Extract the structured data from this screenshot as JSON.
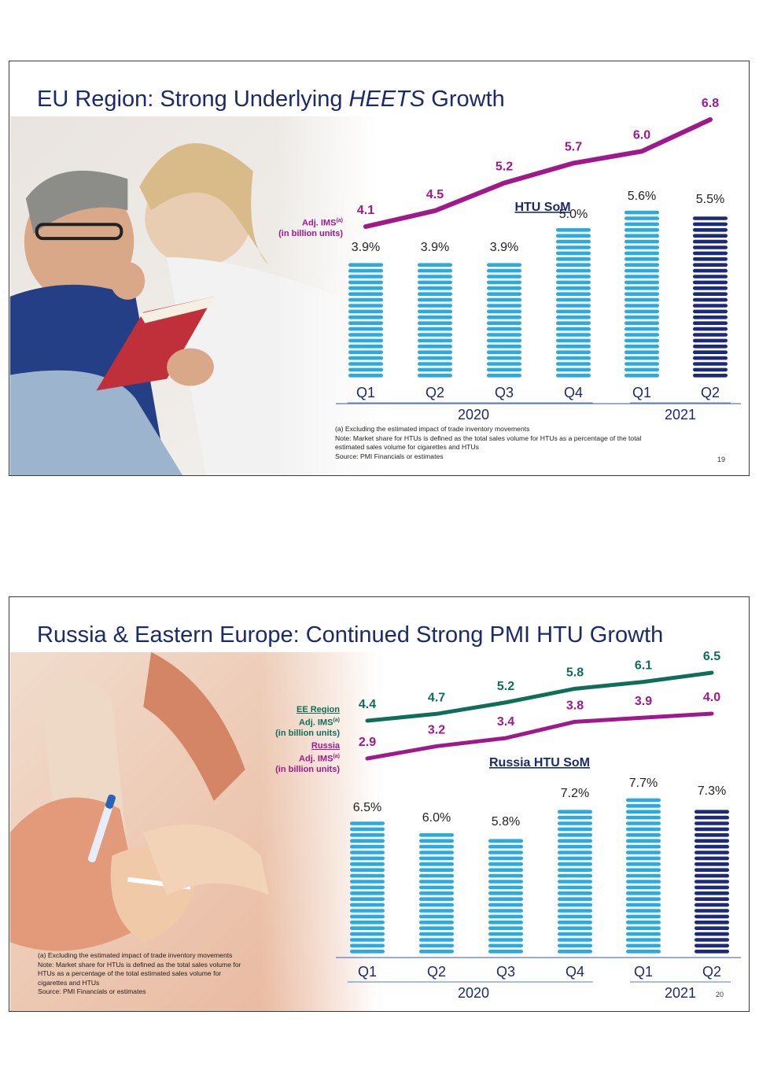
{
  "slides": [
    {
      "title_pre": "EU Region: Strong Underlying ",
      "title_em": "HEETS",
      "title_post": " Growth",
      "ims_label_line1": "Adj. IMS",
      "ims_label_sup": "(a)",
      "ims_label_line2": "(in billion units)",
      "som_label": "HTU SoM",
      "footnotes": [
        "(a)  Excluding the estimated impact of trade inventory movements",
        "Note: Market share for HTUs is defined as the total sales volume for HTUs as a percentage of the total",
        "estimated sales volume for cigarettes and HTUs",
        "Source: PMI Financials or estimates"
      ],
      "page_number": "19"
    },
    {
      "title": "Russia & Eastern Europe: Continued Strong PMI HTU Growth",
      "ee_label_title": "EE Region",
      "ee_label_line1": "Adj. IMS",
      "ee_label_sup": "(a)",
      "ee_label_line2": "(in billion units)",
      "ru_label_title": "Russia",
      "ru_label_line1": "Adj. IMS",
      "ru_label_sup": "(a)",
      "ru_label_line2": "(in billion units)",
      "som_label": "Russia HTU SoM",
      "footnotes": [
        "(a)  Excluding the estimated impact of trade inventory movements",
        "Note: Market share for HTUs is defined as the total sales volume for",
        "HTUs as a percentage of the total estimated sales volume for",
        "cigarettes and HTUs",
        "Source: PMI Financials or estimates"
      ],
      "page_number": "20"
    }
  ],
  "colors": {
    "title": "#1b2a6b",
    "bar_light": "#29abe2",
    "bar_dark": "#1b2a7a",
    "eu_line": "#a0198c",
    "ee_line": "#0e6e5a",
    "russia_line": "#a0198c",
    "axis": "#5b78c6",
    "quarter_text": "#1b2a6b"
  },
  "chart_data": [
    {
      "type": "bar",
      "categories": [
        "Q1",
        "Q2",
        "Q3",
        "Q4",
        "Q1",
        "Q2"
      ],
      "groups": [
        {
          "label": "2020",
          "from": 0,
          "to": 3
        },
        {
          "label": "2021",
          "from": 4,
          "to": 5
        }
      ],
      "series": [
        {
          "name": "HTU SoM",
          "values": [
            3.9,
            3.9,
            3.9,
            5.0,
            5.6,
            5.5
          ],
          "labels": [
            "3.9%",
            "3.9%",
            "3.9%",
            "5.0%",
            "5.6%",
            "5.5%"
          ],
          "unit": "%"
        }
      ],
      "lines": [
        {
          "name": "Adj. IMS (in billion units)",
          "values": [
            4.1,
            4.5,
            5.2,
            5.7,
            6.0,
            6.8
          ],
          "labels": [
            "4.1",
            "4.5",
            "5.2",
            "5.7",
            "6.0",
            "6.8"
          ]
        }
      ],
      "last_bar_highlight": true
    },
    {
      "type": "bar",
      "categories": [
        "Q1",
        "Q2",
        "Q3",
        "Q4",
        "Q1",
        "Q2"
      ],
      "groups": [
        {
          "label": "2020",
          "from": 0,
          "to": 3
        },
        {
          "label": "2021",
          "from": 4,
          "to": 5
        }
      ],
      "series": [
        {
          "name": "Russia HTU SoM",
          "values": [
            6.5,
            6.0,
            5.8,
            7.2,
            7.7,
            7.3
          ],
          "labels": [
            "6.5%",
            "6.0%",
            "5.8%",
            "7.2%",
            "7.7%",
            "7.3%"
          ],
          "unit": "%"
        }
      ],
      "lines": [
        {
          "name": "EE Region Adj. IMS (in billion units)",
          "values": [
            4.4,
            4.7,
            5.2,
            5.8,
            6.1,
            6.5
          ],
          "labels": [
            "4.4",
            "4.7",
            "5.2",
            "5.8",
            "6.1",
            "6.5"
          ]
        },
        {
          "name": "Russia Adj. IMS (in billion units)",
          "values": [
            2.9,
            3.2,
            3.4,
            3.8,
            3.9,
            4.0
          ],
          "labels": [
            "2.9",
            "3.2",
            "3.4",
            "3.8",
            "3.9",
            "4.0"
          ]
        }
      ],
      "last_bar_highlight": true
    }
  ]
}
